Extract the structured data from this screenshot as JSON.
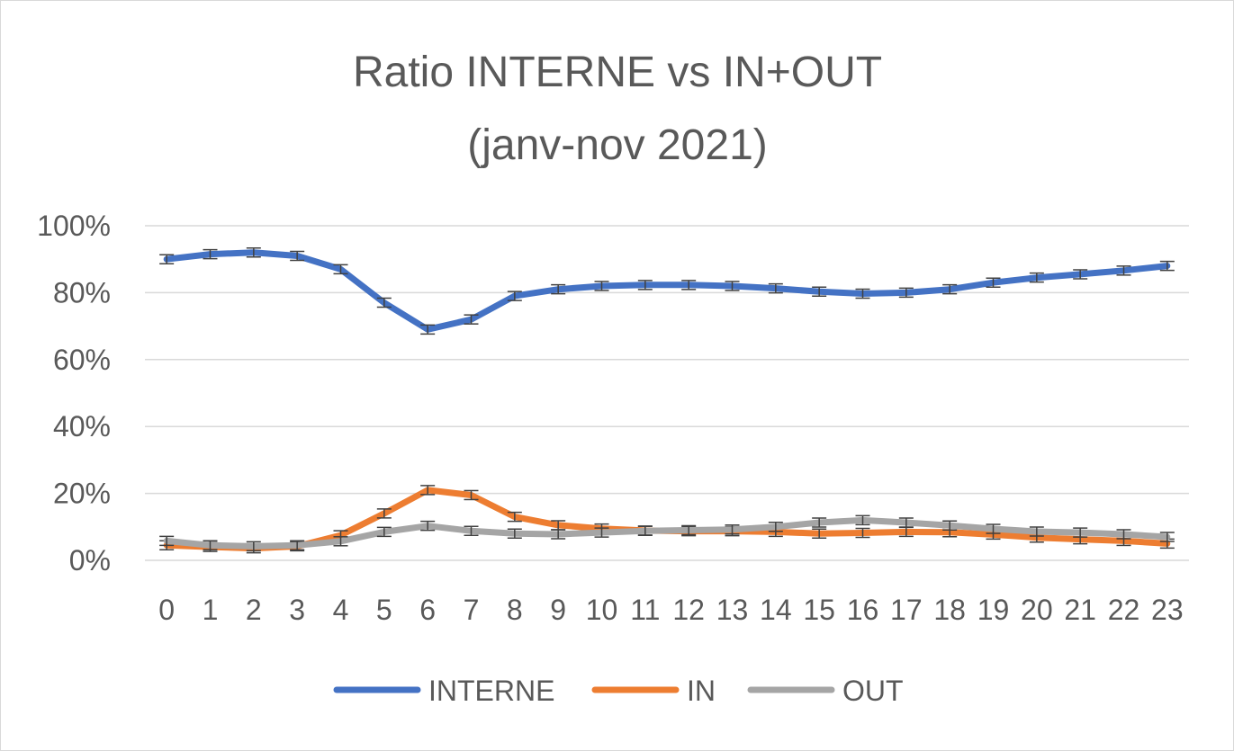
{
  "chart_data": {
    "type": "line",
    "title_lines": [
      "Ratio INTERNE vs IN+OUT",
      "(janv-nov 2021)"
    ],
    "x": [
      "0",
      "1",
      "2",
      "3",
      "4",
      "5",
      "6",
      "7",
      "8",
      "9",
      "10",
      "11",
      "12",
      "13",
      "14",
      "15",
      "16",
      "17",
      "18",
      "19",
      "20",
      "21",
      "22",
      "23"
    ],
    "y_ticks": [
      "0%",
      "20%",
      "40%",
      "60%",
      "80%",
      "100%"
    ],
    "ylim": [
      0,
      1
    ],
    "grid": "horizontal",
    "legend_position": "bottom",
    "error_bars": true,
    "series": [
      {
        "name": "INTERNE",
        "color": "#4472C4",
        "values": [
          0.9,
          0.915,
          0.92,
          0.91,
          0.87,
          0.77,
          0.69,
          0.72,
          0.79,
          0.81,
          0.82,
          0.823,
          0.823,
          0.82,
          0.813,
          0.803,
          0.797,
          0.8,
          0.81,
          0.83,
          0.845,
          0.855,
          0.866,
          0.88
        ]
      },
      {
        "name": "IN",
        "color": "#ED7D31",
        "values": [
          0.045,
          0.04,
          0.036,
          0.042,
          0.075,
          0.14,
          0.21,
          0.195,
          0.13,
          0.105,
          0.095,
          0.089,
          0.087,
          0.087,
          0.085,
          0.08,
          0.082,
          0.085,
          0.084,
          0.077,
          0.068,
          0.063,
          0.058,
          0.05
        ]
      },
      {
        "name": "OUT",
        "color": "#A5A5A5",
        "values": [
          0.058,
          0.045,
          0.042,
          0.045,
          0.057,
          0.085,
          0.103,
          0.088,
          0.08,
          0.078,
          0.083,
          0.088,
          0.09,
          0.092,
          0.1,
          0.113,
          0.12,
          0.113,
          0.104,
          0.094,
          0.086,
          0.083,
          0.078,
          0.07
        ]
      }
    ]
  }
}
